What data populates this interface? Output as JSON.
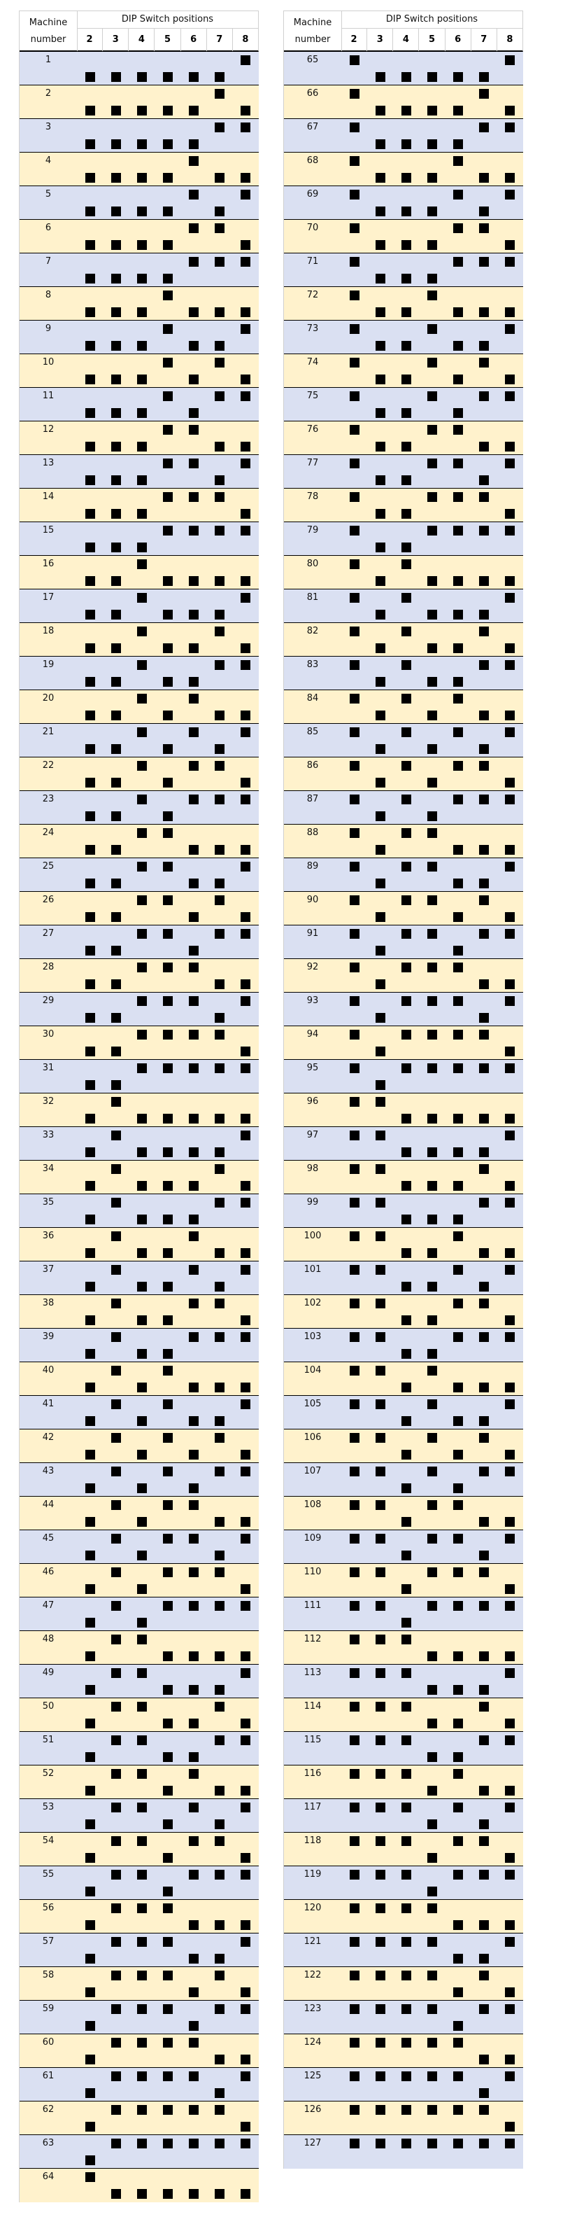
{
  "header": {
    "machine_label": "Machine number",
    "group_label": "DIP Switch positions",
    "switch_columns": [
      "2",
      "3",
      "4",
      "5",
      "6",
      "7",
      "8"
    ]
  },
  "colors": {
    "row_odd": "#dae0f2",
    "row_even": "#fff2cc",
    "marker": "#000000"
  },
  "legend_note_encoding": "1 = marker in upper position, 0 = marker in lower position",
  "tables": [
    {
      "rows": [
        {
          "n": "1",
          "s": "0000001"
        },
        {
          "n": "2",
          "s": "0000010"
        },
        {
          "n": "3",
          "s": "0000011"
        },
        {
          "n": "4",
          "s": "0000100"
        },
        {
          "n": "5",
          "s": "0000101"
        },
        {
          "n": "6",
          "s": "0000110"
        },
        {
          "n": "7",
          "s": "0000111"
        },
        {
          "n": "8",
          "s": "0001000"
        },
        {
          "n": "9",
          "s": "0001001"
        },
        {
          "n": "10",
          "s": "0001010"
        },
        {
          "n": "11",
          "s": "0001011"
        },
        {
          "n": "12",
          "s": "0001100"
        },
        {
          "n": "13",
          "s": "0001101"
        },
        {
          "n": "14",
          "s": "0001110"
        },
        {
          "n": "15",
          "s": "0001111"
        },
        {
          "n": "16",
          "s": "0010000"
        },
        {
          "n": "17",
          "s": "0010001"
        },
        {
          "n": "18",
          "s": "0010010"
        },
        {
          "n": "19",
          "s": "0010011"
        },
        {
          "n": "20",
          "s": "0010100"
        },
        {
          "n": "21",
          "s": "0010101"
        },
        {
          "n": "22",
          "s": "0010110"
        },
        {
          "n": "23",
          "s": "0010111"
        },
        {
          "n": "24",
          "s": "0011000"
        },
        {
          "n": "25",
          "s": "0011001"
        },
        {
          "n": "26",
          "s": "0011010"
        },
        {
          "n": "27",
          "s": "0011011"
        },
        {
          "n": "28",
          "s": "0011100"
        },
        {
          "n": "29",
          "s": "0011101"
        },
        {
          "n": "30",
          "s": "0011110"
        },
        {
          "n": "31",
          "s": "0011111"
        },
        {
          "n": "32",
          "s": "0100000"
        },
        {
          "n": "33",
          "s": "0100001"
        },
        {
          "n": "34",
          "s": "0100010"
        },
        {
          "n": "35",
          "s": "0100011"
        },
        {
          "n": "36",
          "s": "0100100"
        },
        {
          "n": "37",
          "s": "0100101"
        },
        {
          "n": "38",
          "s": "0100110"
        },
        {
          "n": "39",
          "s": "0100111"
        },
        {
          "n": "40",
          "s": "0101000"
        },
        {
          "n": "41",
          "s": "0101001"
        },
        {
          "n": "42",
          "s": "0101010"
        },
        {
          "n": "43",
          "s": "0101011"
        },
        {
          "n": "44",
          "s": "0101100"
        },
        {
          "n": "45",
          "s": "0101101"
        },
        {
          "n": "46",
          "s": "0101110"
        },
        {
          "n": "47",
          "s": "0101111"
        },
        {
          "n": "48",
          "s": "0110000"
        },
        {
          "n": "49",
          "s": "0110001"
        },
        {
          "n": "50",
          "s": "0110010"
        },
        {
          "n": "51",
          "s": "0110011"
        },
        {
          "n": "52",
          "s": "0110100"
        },
        {
          "n": "53",
          "s": "0110101"
        },
        {
          "n": "54",
          "s": "0110110"
        },
        {
          "n": "55",
          "s": "0110111"
        },
        {
          "n": "56",
          "s": "0111000"
        },
        {
          "n": "57",
          "s": "0111001"
        },
        {
          "n": "58",
          "s": "0111010"
        },
        {
          "n": "59",
          "s": "0111011"
        },
        {
          "n": "60",
          "s": "0111100"
        },
        {
          "n": "61",
          "s": "0111101"
        },
        {
          "n": "62",
          "s": "0111110"
        },
        {
          "n": "63",
          "s": "0111111"
        },
        {
          "n": "64",
          "s": "1000000"
        }
      ]
    },
    {
      "rows": [
        {
          "n": "65",
          "s": "1000001"
        },
        {
          "n": "66",
          "s": "1000010"
        },
        {
          "n": "67",
          "s": "1000011"
        },
        {
          "n": "68",
          "s": "1000100"
        },
        {
          "n": "69",
          "s": "1000101"
        },
        {
          "n": "70",
          "s": "1000110"
        },
        {
          "n": "71",
          "s": "1000111"
        },
        {
          "n": "72",
          "s": "1001000"
        },
        {
          "n": "73",
          "s": "1001001"
        },
        {
          "n": "74",
          "s": "1001010"
        },
        {
          "n": "75",
          "s": "1001011"
        },
        {
          "n": "76",
          "s": "1001100"
        },
        {
          "n": "77",
          "s": "1001101"
        },
        {
          "n": "78",
          "s": "1001110"
        },
        {
          "n": "79",
          "s": "1001111"
        },
        {
          "n": "80",
          "s": "1010000"
        },
        {
          "n": "81",
          "s": "1010001"
        },
        {
          "n": "82",
          "s": "1010010"
        },
        {
          "n": "83",
          "s": "1010011"
        },
        {
          "n": "84",
          "s": "1010100"
        },
        {
          "n": "85",
          "s": "1010101"
        },
        {
          "n": "86",
          "s": "1010110"
        },
        {
          "n": "87",
          "s": "1010111"
        },
        {
          "n": "88",
          "s": "1011000"
        },
        {
          "n": "89",
          "s": "1011001"
        },
        {
          "n": "90",
          "s": "1011010"
        },
        {
          "n": "91",
          "s": "1011011"
        },
        {
          "n": "92",
          "s": "1011100"
        },
        {
          "n": "93",
          "s": "1011101"
        },
        {
          "n": "94",
          "s": "1011110"
        },
        {
          "n": "95",
          "s": "1011111"
        },
        {
          "n": "96",
          "s": "1100000"
        },
        {
          "n": "97",
          "s": "1100001"
        },
        {
          "n": "98",
          "s": "1100010"
        },
        {
          "n": "99",
          "s": "1100011"
        },
        {
          "n": "100",
          "s": "1100100"
        },
        {
          "n": "101",
          "s": "1100101"
        },
        {
          "n": "102",
          "s": "1100110"
        },
        {
          "n": "103",
          "s": "1100111"
        },
        {
          "n": "104",
          "s": "1101000"
        },
        {
          "n": "105",
          "s": "1101001"
        },
        {
          "n": "106",
          "s": "1101010"
        },
        {
          "n": "107",
          "s": "1101011"
        },
        {
          "n": "108",
          "s": "1101100"
        },
        {
          "n": "109",
          "s": "1101101"
        },
        {
          "n": "110",
          "s": "1101110"
        },
        {
          "n": "111",
          "s": "1101111"
        },
        {
          "n": "112",
          "s": "1110000"
        },
        {
          "n": "113",
          "s": "1110001"
        },
        {
          "n": "114",
          "s": "1110010"
        },
        {
          "n": "115",
          "s": "1110011"
        },
        {
          "n": "116",
          "s": "1110100"
        },
        {
          "n": "117",
          "s": "1110101"
        },
        {
          "n": "118",
          "s": "1110110"
        },
        {
          "n": "119",
          "s": "1110111"
        },
        {
          "n": "120",
          "s": "1111000"
        },
        {
          "n": "121",
          "s": "1111001"
        },
        {
          "n": "122",
          "s": "1111010"
        },
        {
          "n": "123",
          "s": "1111011"
        },
        {
          "n": "124",
          "s": "1111100"
        },
        {
          "n": "125",
          "s": "1111101"
        },
        {
          "n": "126",
          "s": "1111110"
        },
        {
          "n": "127",
          "s": "1111111"
        }
      ]
    }
  ]
}
